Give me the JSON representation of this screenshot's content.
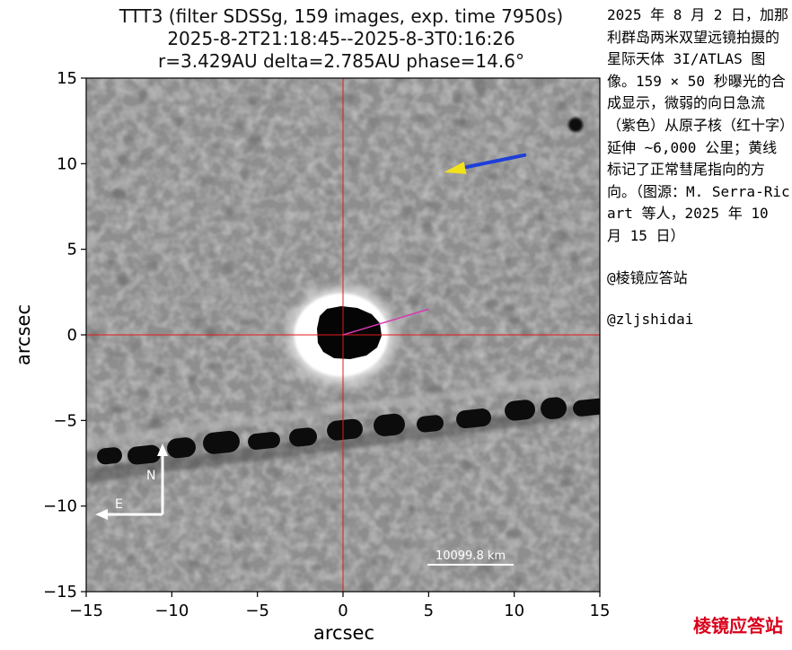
{
  "title_lines": [
    "TTT3 (filter SDSSg, 159 images, exp. time 7950s)",
    "2025-8-2T21:18:45--2025-8-3T0:16:26",
    "r=3.429AU delta=2.785AU phase=14.6°"
  ],
  "axes": {
    "xlabel": "arcsec",
    "ylabel": "arcsec",
    "xlim": [
      -15,
      15
    ],
    "ylim": [
      -15,
      15
    ],
    "x_ticks": [
      -15,
      -10,
      -5,
      0,
      5,
      10,
      15
    ],
    "y_ticks": [
      -15,
      -10,
      -5,
      0,
      5,
      10,
      15
    ],
    "x_tick_labels": [
      "−15",
      "−10",
      "−5",
      "0",
      "5",
      "10",
      "15"
    ],
    "y_tick_labels": [
      "−15",
      "−10",
      "−5",
      "0",
      "5",
      "10",
      "15"
    ]
  },
  "overlays": {
    "crosshair_color": "#e31a1c",
    "antisunward_line": {
      "from": [
        0,
        0
      ],
      "to": [
        5,
        1.5
      ],
      "color": "#d63ab0"
    },
    "compass": {
      "north_label": "N",
      "east_label": "E"
    },
    "scale_bar": {
      "label": "10099.8 km"
    },
    "blue_arrow": {
      "from": [
        10.6,
        10.5
      ],
      "to": [
        7.2,
        9.8
      ],
      "color": "#1d3fd8"
    },
    "yellow_arrow": {
      "from": [
        7.2,
        9.8
      ],
      "to": [
        5.9,
        9.5
      ],
      "color": "#f2e21a"
    }
  },
  "caption": {
    "description": "2025 年 8 月 2 日，加那利群岛两米双望远镜拍摄的星际天体 3I/ATLAS 图像。159 × 50 秒曝光的合成显示，微弱的向日急流（紫色）从原子核（红十字）延伸 ~6,000 公里；黄线标记了正常彗尾指向的方向。（图源：M. Serra-Ricart 等人，2025 年 10 月 15 日）",
    "credit_1": "@棱镜应答站",
    "credit_2": "@zljshidai"
  },
  "watermark": "棱镜应答站"
}
